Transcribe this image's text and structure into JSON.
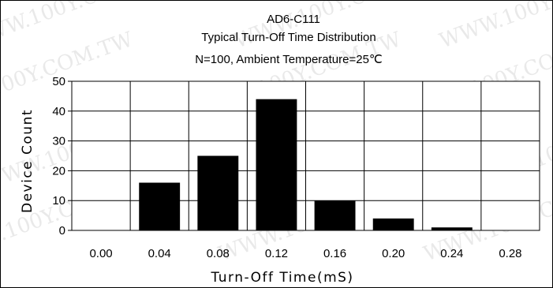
{
  "chart_data": {
    "type": "bar",
    "title": "AD6-C111",
    "subtitle": "Typical Turn-Off Time Distribution",
    "subtitle2": "N=100, Ambient Temperature=25℃",
    "xlabel": "Turn-Off Time(mS)",
    "ylabel": "Device Count",
    "categories": [
      "0.00",
      "0.04",
      "0.08",
      "0.12",
      "0.16",
      "0.20",
      "0.24",
      "0.28"
    ],
    "values": [
      0,
      16,
      25,
      44,
      10,
      4,
      1,
      0
    ],
    "yticks": [
      "0",
      "10",
      "20",
      "30",
      "40",
      "50"
    ],
    "ylim": [
      0,
      50
    ],
    "grid": true,
    "bar_color": "#000000"
  },
  "watermark": {
    "text": "WWW.100Y.COM.TW",
    "color": "#e9e9e9"
  }
}
